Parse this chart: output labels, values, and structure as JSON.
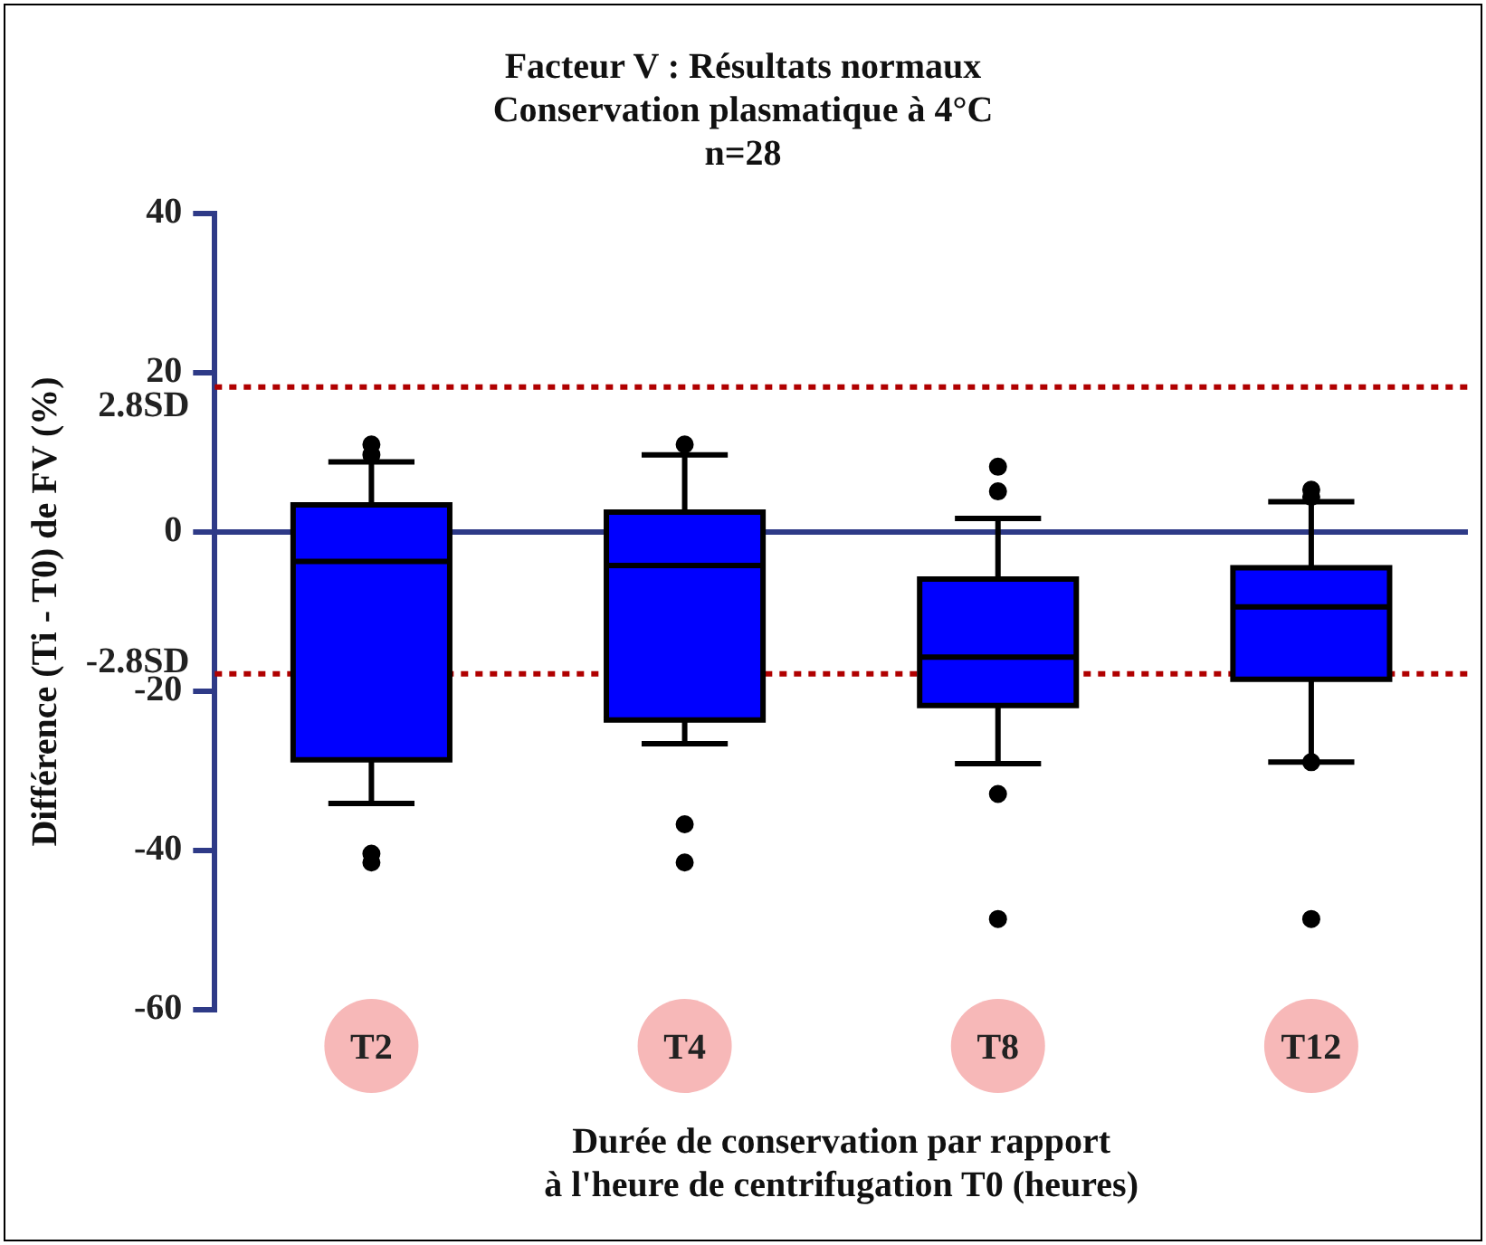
{
  "chart_data": {
    "type": "box",
    "title": "Facteur V : Résultats normaux",
    "subtitle": "Conservation plasmatique à 4°C\nn=28",
    "xlabel": "Durée de conservation par rapport\nà l'heure de centrifugation T0 (heures)",
    "ylabel": "Différence (Ti - T0) de FV (%)",
    "categories": [
      "T2",
      "T4",
      "T8",
      "T12"
    ],
    "series": [
      {
        "color": "#0000ff",
        "boxes": [
          {
            "low": -34.1,
            "q1": -28.6,
            "median": -3.7,
            "q3": 3.4,
            "high": 8.8,
            "outliers": [
              11.0,
              9.7,
              -40.4,
              -41.5
            ]
          },
          {
            "low": -26.6,
            "q1": -23.6,
            "median": -4.2,
            "q3": 2.5,
            "high": 9.7,
            "outliers": [
              11.0,
              -36.7,
              -41.5
            ]
          },
          {
            "low": -29.1,
            "q1": -21.8,
            "median": -15.7,
            "q3": -5.9,
            "high": 1.7,
            "outliers": [
              8.2,
              5.1,
              -32.9,
              -48.6
            ]
          },
          {
            "low": -28.9,
            "q1": -18.5,
            "median": -9.4,
            "q3": -4.5,
            "high": 3.8,
            "outliers": [
              4.4,
              5.3,
              -28.9,
              -48.6
            ]
          }
        ]
      }
    ],
    "ylim": [
      -60,
      40
    ],
    "yticks": [
      -60,
      -40,
      -20,
      0,
      20,
      40
    ],
    "ref_lines": [
      {
        "axis": "y",
        "value": 18.2,
        "label": "2.8SD",
        "color": "#b00000",
        "line_style": "dotted"
      },
      {
        "axis": "y",
        "value": -17.8,
        "label": "-2.8SD",
        "color": "#b00000",
        "line_style": "dotted"
      },
      {
        "axis": "y",
        "value": 0,
        "color": "#2e3a87",
        "line_style": "solid"
      }
    ],
    "marker": "circle",
    "grid": false,
    "legend": false
  }
}
